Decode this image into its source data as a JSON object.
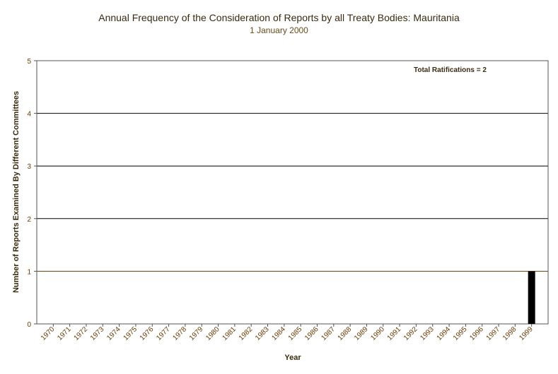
{
  "chart_data": {
    "type": "bar",
    "title": "Annual Frequency of the Consideration of Reports by all Treaty Bodies: Mauritania",
    "subtitle": "1 January 2000",
    "xlabel": "Year",
    "ylabel": "Number of Reports Examined By Different Committees",
    "ylim": [
      0,
      5
    ],
    "yticks": [
      "0",
      "1",
      "2",
      "3",
      "4",
      "5"
    ],
    "annotation": "Total Ratifications = 2",
    "categories": [
      "1970",
      "1971",
      "1972",
      "1973",
      "1974",
      "1975",
      "1976",
      "1977",
      "1978",
      "1979",
      "1980",
      "1981",
      "1982",
      "1983",
      "1984",
      "1985",
      "1986",
      "1987",
      "1988",
      "1989",
      "1990",
      "1991",
      "1992",
      "1993",
      "1994",
      "1995",
      "1996",
      "1997",
      "1998",
      "1999"
    ],
    "values": [
      0,
      0,
      0,
      0,
      0,
      0,
      0,
      0,
      0,
      0,
      0,
      0,
      0,
      0,
      0,
      0,
      0,
      0,
      0,
      0,
      0,
      0,
      0,
      0,
      0,
      0,
      0,
      0,
      0,
      1
    ],
    "bar_color": "#000000",
    "grid": true
  }
}
